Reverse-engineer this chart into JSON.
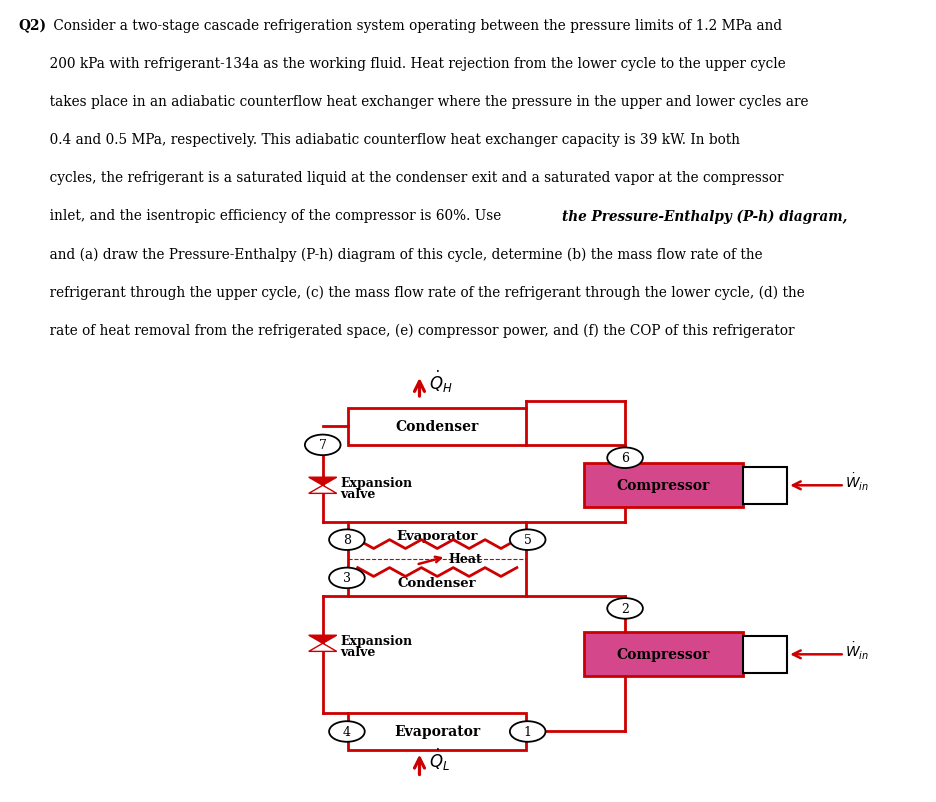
{
  "bg_color": "#ffffff",
  "line_color": "#cc0000",
  "text_color": "#000000",
  "compressor_color": "#d4478a",
  "node_edge_color": "#000000",
  "problem_lines": [
    {
      "text": "Q2)  Consider a two-stage cascade refrigeration system operating between the pressure limits of 1.2 MPa and",
      "bold_q2": true
    },
    {
      "text": "       200 kPa with refrigerant-134a as the working fluid. Heat rejection from the lower cycle to the upper cycle",
      "bold_q2": false
    },
    {
      "text": "       takes place in an adiabatic counterflow heat exchanger where the pressure in the upper and lower cycles are",
      "bold_q2": false
    },
    {
      "text": "       0.4 and 0.5 MPa, respectively. This adiabatic counterflow heat exchanger capacity is 39 kW. In both",
      "bold_q2": false
    },
    {
      "text": "       cycles, the refrigerant is a saturated liquid at the condenser exit and a saturated vapor at the compressor",
      "bold_q2": false
    },
    {
      "text": "       inlet, and the isentropic efficiency of the compressor is 60%. Use ",
      "bold_q2": false,
      "has_bold_italic": true,
      "bold_italic_text": "the Pressure-Enthalpy (P-h) diagram,"
    },
    {
      "text": "       and (a) draw the Pressure-Enthalpy (P-h) diagram of this cycle, determine (b) the mass flow rate of the",
      "bold_q2": false
    },
    {
      "text": "       refrigerant through the upper cycle, (c) the mass flow rate of the refrigerant through the lower cycle, (d) the",
      "bold_q2": false
    },
    {
      "text": "       rate of heat removal from the refrigerated space, (e) compressor power, and (f) the COP of this refrigerator",
      "bold_q2": false
    }
  ]
}
